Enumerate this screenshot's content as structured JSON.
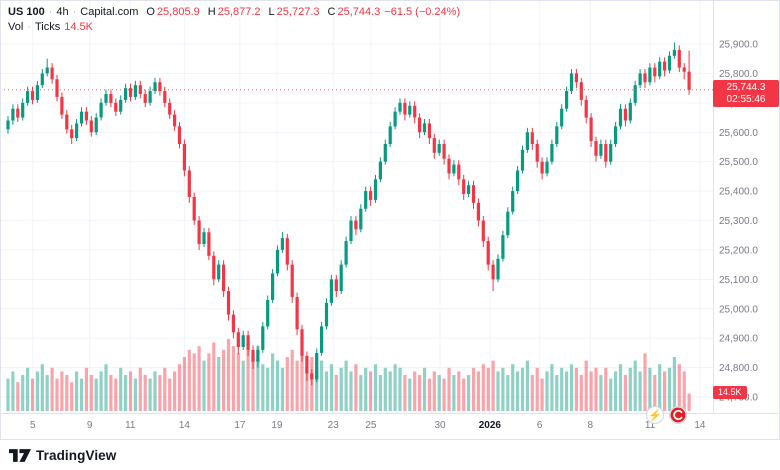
{
  "legend": {
    "symbol": "US 100",
    "sep": "·",
    "interval": "4h",
    "provider": "Capital.com",
    "o_label": "O",
    "o_value": "25,805.9",
    "h_label": "H",
    "h_value": "25,877.2",
    "l_label": "L",
    "l_value": "25,727.3",
    "c_label": "C",
    "c_value": "25,744.3",
    "change": "−61.5 (−0.24%)",
    "vol_label": "Vol",
    "vol_source": "Ticks",
    "vol_value": "14.5K"
  },
  "price_tag": {
    "price": "25,744.3",
    "countdown": "02:55:46"
  },
  "vol_tag": {
    "label": "14.5K"
  },
  "branding": {
    "logo_text": "TradingView"
  },
  "corner_icons": {
    "boost_glyph": "⚡"
  },
  "colors": {
    "up": "#089981",
    "down": "#f23645",
    "up_vol": "rgba(8,153,129,0.45)",
    "down_vol": "rgba(242,54,69,0.45)",
    "grid": "#f0f3fa",
    "axis_text": "#787b86",
    "text": "#131722",
    "border": "#e0e3eb",
    "accent_red": "#f23645"
  },
  "chart_data": {
    "type": "candlestick",
    "title": "US 100 · 4h · Capital.com",
    "subtitle": "Vol · Ticks",
    "last_price": 25744.3,
    "last_ohlc": {
      "open": 25805.9,
      "high": 25877.2,
      "low": 25727.3,
      "close": 25744.3,
      "change": -61.5,
      "change_pct": -0.24
    },
    "countdown": "02:55:46",
    "price_ticks": [
      {
        "label": "25,900.0",
        "value": 25900
      },
      {
        "label": "25,800.0",
        "value": 25800
      },
      {
        "label": "25,700.0",
        "value": 25700
      },
      {
        "label": "25,600.0",
        "value": 25600
      },
      {
        "label": "25,500.0",
        "value": 25500
      },
      {
        "label": "25,400.0",
        "value": 25400
      },
      {
        "label": "25,300.0",
        "value": 25300
      },
      {
        "label": "25,200.0",
        "value": 25200
      },
      {
        "label": "25,100.0",
        "value": 25100
      },
      {
        "label": "25,000.0",
        "value": 25000
      },
      {
        "label": "24,900.0",
        "value": 24900
      },
      {
        "label": "24,800.0",
        "value": 24800
      },
      {
        "label": "24,700.0",
        "value": 24700
      }
    ],
    "time_labels": [
      {
        "text": "5",
        "pos": 0.046
      },
      {
        "text": "9",
        "pos": 0.126
      },
      {
        "text": "11",
        "pos": 0.183
      },
      {
        "text": "14",
        "pos": 0.259
      },
      {
        "text": "17",
        "pos": 0.337
      },
      {
        "text": "19",
        "pos": 0.389
      },
      {
        "text": "23",
        "pos": 0.468
      },
      {
        "text": "25",
        "pos": 0.521
      },
      {
        "text": "30",
        "pos": 0.618
      },
      {
        "text": "2026",
        "pos": 0.688
      },
      {
        "text": "6",
        "pos": 0.758
      },
      {
        "text": "8",
        "pos": 0.829
      },
      {
        "text": "11",
        "pos": 0.913
      },
      {
        "text": "14",
        "pos": 0.983
      }
    ],
    "volume_scale_max": 60,
    "volume_unit": "K",
    "last_volume": 14.5,
    "candles": [
      [
        25610,
        25655,
        25595,
        25640
      ],
      [
        25640,
        25695,
        25625,
        25680
      ],
      [
        25680,
        25695,
        25635,
        25650
      ],
      [
        25650,
        25715,
        25640,
        25700
      ],
      [
        25700,
        25755,
        25690,
        25740
      ],
      [
        25740,
        25755,
        25695,
        25710
      ],
      [
        25710,
        25775,
        25700,
        25760
      ],
      [
        25760,
        25815,
        25750,
        25800
      ],
      [
        25800,
        25850,
        25790,
        25820
      ],
      [
        25820,
        25835,
        25765,
        25780
      ],
      [
        25780,
        25795,
        25705,
        25720
      ],
      [
        25720,
        25735,
        25645,
        25660
      ],
      [
        25660,
        25675,
        25595,
        25610
      ],
      [
        25610,
        25625,
        25560,
        25580
      ],
      [
        25580,
        25645,
        25570,
        25630
      ],
      [
        25630,
        25685,
        25620,
        25670
      ],
      [
        25670,
        25685,
        25625,
        25640
      ],
      [
        25640,
        25655,
        25585,
        25600
      ],
      [
        25600,
        25665,
        25590,
        25650
      ],
      [
        25650,
        25715,
        25640,
        25700
      ],
      [
        25700,
        25745,
        25690,
        25730
      ],
      [
        25730,
        25745,
        25685,
        25700
      ],
      [
        25700,
        25715,
        25655,
        25670
      ],
      [
        25670,
        25725,
        25660,
        25710
      ],
      [
        25710,
        25765,
        25700,
        25750
      ],
      [
        25750,
        25765,
        25705,
        25720
      ],
      [
        25720,
        25775,
        25710,
        25760
      ],
      [
        25760,
        25775,
        25715,
        25730
      ],
      [
        25730,
        25745,
        25685,
        25700
      ],
      [
        25700,
        25755,
        25690,
        25740
      ],
      [
        25740,
        25785,
        25730,
        25770
      ],
      [
        25770,
        25785,
        25725,
        25740
      ],
      [
        25740,
        25755,
        25685,
        25700
      ],
      [
        25700,
        25715,
        25645,
        25660
      ],
      [
        25660,
        25675,
        25605,
        25620
      ],
      [
        25620,
        25635,
        25545,
        25560
      ],
      [
        25560,
        25575,
        25450,
        25470
      ],
      [
        25470,
        25485,
        25360,
        25380
      ],
      [
        25380,
        25395,
        25285,
        25300
      ],
      [
        25300,
        25315,
        25200,
        25220
      ],
      [
        25220,
        25275,
        25210,
        25260
      ],
      [
        25260,
        25275,
        25165,
        25180
      ],
      [
        25180,
        25195,
        25080,
        25100
      ],
      [
        25100,
        25165,
        25090,
        25150
      ],
      [
        25150,
        25165,
        25040,
        25060
      ],
      [
        25060,
        25075,
        24960,
        24980
      ],
      [
        24980,
        24995,
        24900,
        24920
      ],
      [
        24920,
        24935,
        24845,
        24870
      ],
      [
        24870,
        24925,
        24860,
        24910
      ],
      [
        24910,
        24925,
        24840,
        24860
      ],
      [
        24860,
        24875,
        24795,
        24820
      ],
      [
        24820,
        24875,
        24800,
        24860
      ],
      [
        24860,
        24955,
        24850,
        24940
      ],
      [
        24940,
        25045,
        24930,
        25030
      ],
      [
        25030,
        25135,
        25020,
        25120
      ],
      [
        25120,
        25215,
        25110,
        25200
      ],
      [
        25200,
        25260,
        25190,
        25240
      ],
      [
        25240,
        25255,
        25130,
        25150
      ],
      [
        25150,
        25165,
        25020,
        25040
      ],
      [
        25040,
        25055,
        24910,
        24930
      ],
      [
        24930,
        24945,
        24820,
        24840
      ],
      [
        24840,
        24855,
        24755,
        24780
      ],
      [
        24780,
        24795,
        24740,
        24760
      ],
      [
        24760,
        24865,
        24750,
        24850
      ],
      [
        24850,
        24955,
        24840,
        24940
      ],
      [
        24940,
        25035,
        24930,
        25020
      ],
      [
        25020,
        25115,
        25010,
        25100
      ],
      [
        25100,
        25115,
        25040,
        25060
      ],
      [
        25060,
        25165,
        25050,
        25150
      ],
      [
        25150,
        25245,
        25140,
        25230
      ],
      [
        25230,
        25315,
        25220,
        25300
      ],
      [
        25300,
        25315,
        25250,
        25270
      ],
      [
        25270,
        25355,
        25260,
        25340
      ],
      [
        25340,
        25415,
        25330,
        25400
      ],
      [
        25400,
        25415,
        25350,
        25370
      ],
      [
        25370,
        25455,
        25360,
        25440
      ],
      [
        25440,
        25515,
        25430,
        25500
      ],
      [
        25500,
        25575,
        25490,
        25560
      ],
      [
        25560,
        25635,
        25550,
        25620
      ],
      [
        25620,
        25685,
        25610,
        25670
      ],
      [
        25670,
        25715,
        25660,
        25700
      ],
      [
        25700,
        25715,
        25640,
        25660
      ],
      [
        25660,
        25705,
        25650,
        25690
      ],
      [
        25690,
        25705,
        25630,
        25650
      ],
      [
        25650,
        25665,
        25580,
        25600
      ],
      [
        25600,
        25645,
        25590,
        25630
      ],
      [
        25630,
        25645,
        25560,
        25580
      ],
      [
        25580,
        25595,
        25510,
        25530
      ],
      [
        25530,
        25575,
        25520,
        25560
      ],
      [
        25560,
        25575,
        25490,
        25510
      ],
      [
        25510,
        25525,
        25440,
        25460
      ],
      [
        25460,
        25505,
        25450,
        25490
      ],
      [
        25490,
        25505,
        25420,
        25440
      ],
      [
        25440,
        25455,
        25370,
        25390
      ],
      [
        25390,
        25435,
        25380,
        25420
      ],
      [
        25420,
        25435,
        25340,
        25360
      ],
      [
        25360,
        25375,
        25280,
        25300
      ],
      [
        25300,
        25315,
        25210,
        25230
      ],
      [
        25230,
        25245,
        25130,
        25150
      ],
      [
        25150,
        25165,
        25060,
        25100
      ],
      [
        25100,
        25185,
        25090,
        25170
      ],
      [
        25170,
        25265,
        25160,
        25250
      ],
      [
        25250,
        25345,
        25240,
        25330
      ],
      [
        25330,
        25415,
        25320,
        25400
      ],
      [
        25400,
        25485,
        25390,
        25470
      ],
      [
        25470,
        25555,
        25460,
        25540
      ],
      [
        25540,
        25615,
        25530,
        25600
      ],
      [
        25600,
        25615,
        25540,
        25560
      ],
      [
        25560,
        25575,
        25480,
        25500
      ],
      [
        25500,
        25515,
        25440,
        25460
      ],
      [
        25460,
        25515,
        25450,
        25500
      ],
      [
        25500,
        25575,
        25490,
        25560
      ],
      [
        25560,
        25635,
        25550,
        25620
      ],
      [
        25620,
        25695,
        25610,
        25680
      ],
      [
        25680,
        25755,
        25670,
        25740
      ],
      [
        25740,
        25815,
        25730,
        25800
      ],
      [
        25800,
        25815,
        25750,
        25770
      ],
      [
        25770,
        25785,
        25690,
        25710
      ],
      [
        25710,
        25725,
        25630,
        25650
      ],
      [
        25650,
        25665,
        25550,
        25570
      ],
      [
        25570,
        25585,
        25500,
        25520
      ],
      [
        25520,
        25575,
        25510,
        25560
      ],
      [
        25560,
        25575,
        25480,
        25500
      ],
      [
        25500,
        25575,
        25490,
        25560
      ],
      [
        25560,
        25635,
        25550,
        25620
      ],
      [
        25620,
        25695,
        25610,
        25680
      ],
      [
        25680,
        25695,
        25620,
        25640
      ],
      [
        25640,
        25715,
        25630,
        25700
      ],
      [
        25700,
        25775,
        25690,
        25760
      ],
      [
        25760,
        25815,
        25750,
        25800
      ],
      [
        25800,
        25815,
        25750,
        25770
      ],
      [
        25770,
        25835,
        25760,
        25820
      ],
      [
        25820,
        25835,
        25770,
        25790
      ],
      [
        25790,
        25855,
        25780,
        25840
      ],
      [
        25840,
        25855,
        25790,
        25810
      ],
      [
        25810,
        25875,
        25800,
        25860
      ],
      [
        25860,
        25905,
        25850,
        25880
      ],
      [
        25880,
        25895,
        25805,
        25820
      ],
      [
        25820,
        25835,
        25780,
        25805.9
      ],
      [
        25805.9,
        25877.2,
        25727.3,
        25744.3
      ]
    ],
    "volumes": [
      27,
      33,
      24,
      30,
      36,
      27,
      33,
      39,
      30,
      36,
      27,
      33,
      30,
      24,
      33,
      27,
      36,
      30,
      27,
      33,
      39,
      30,
      27,
      36,
      30,
      33,
      27,
      36,
      30,
      27,
      33,
      30,
      36,
      27,
      33,
      39,
      45,
      51,
      48,
      54,
      42,
      48,
      57,
      45,
      51,
      60,
      54,
      48,
      42,
      51,
      45,
      54,
      39,
      36,
      48,
      42,
      36,
      45,
      51,
      42,
      48,
      39,
      45,
      36,
      42,
      33,
      39,
      30,
      36,
      42,
      33,
      39,
      30,
      36,
      33,
      39,
      30,
      36,
      33,
      39,
      36,
      30,
      27,
      33,
      30,
      36,
      27,
      33,
      30,
      27,
      36,
      30,
      33,
      27,
      30,
      36,
      33,
      39,
      36,
      42,
      33,
      36,
      30,
      39,
      33,
      36,
      42,
      30,
      36,
      27,
      33,
      39,
      30,
      36,
      33,
      39,
      36,
      30,
      42,
      33,
      36,
      30,
      36,
      27,
      33,
      39,
      30,
      36,
      42,
      33,
      48,
      36,
      30,
      39,
      33,
      36,
      45,
      39,
      33,
      14.5
    ]
  }
}
